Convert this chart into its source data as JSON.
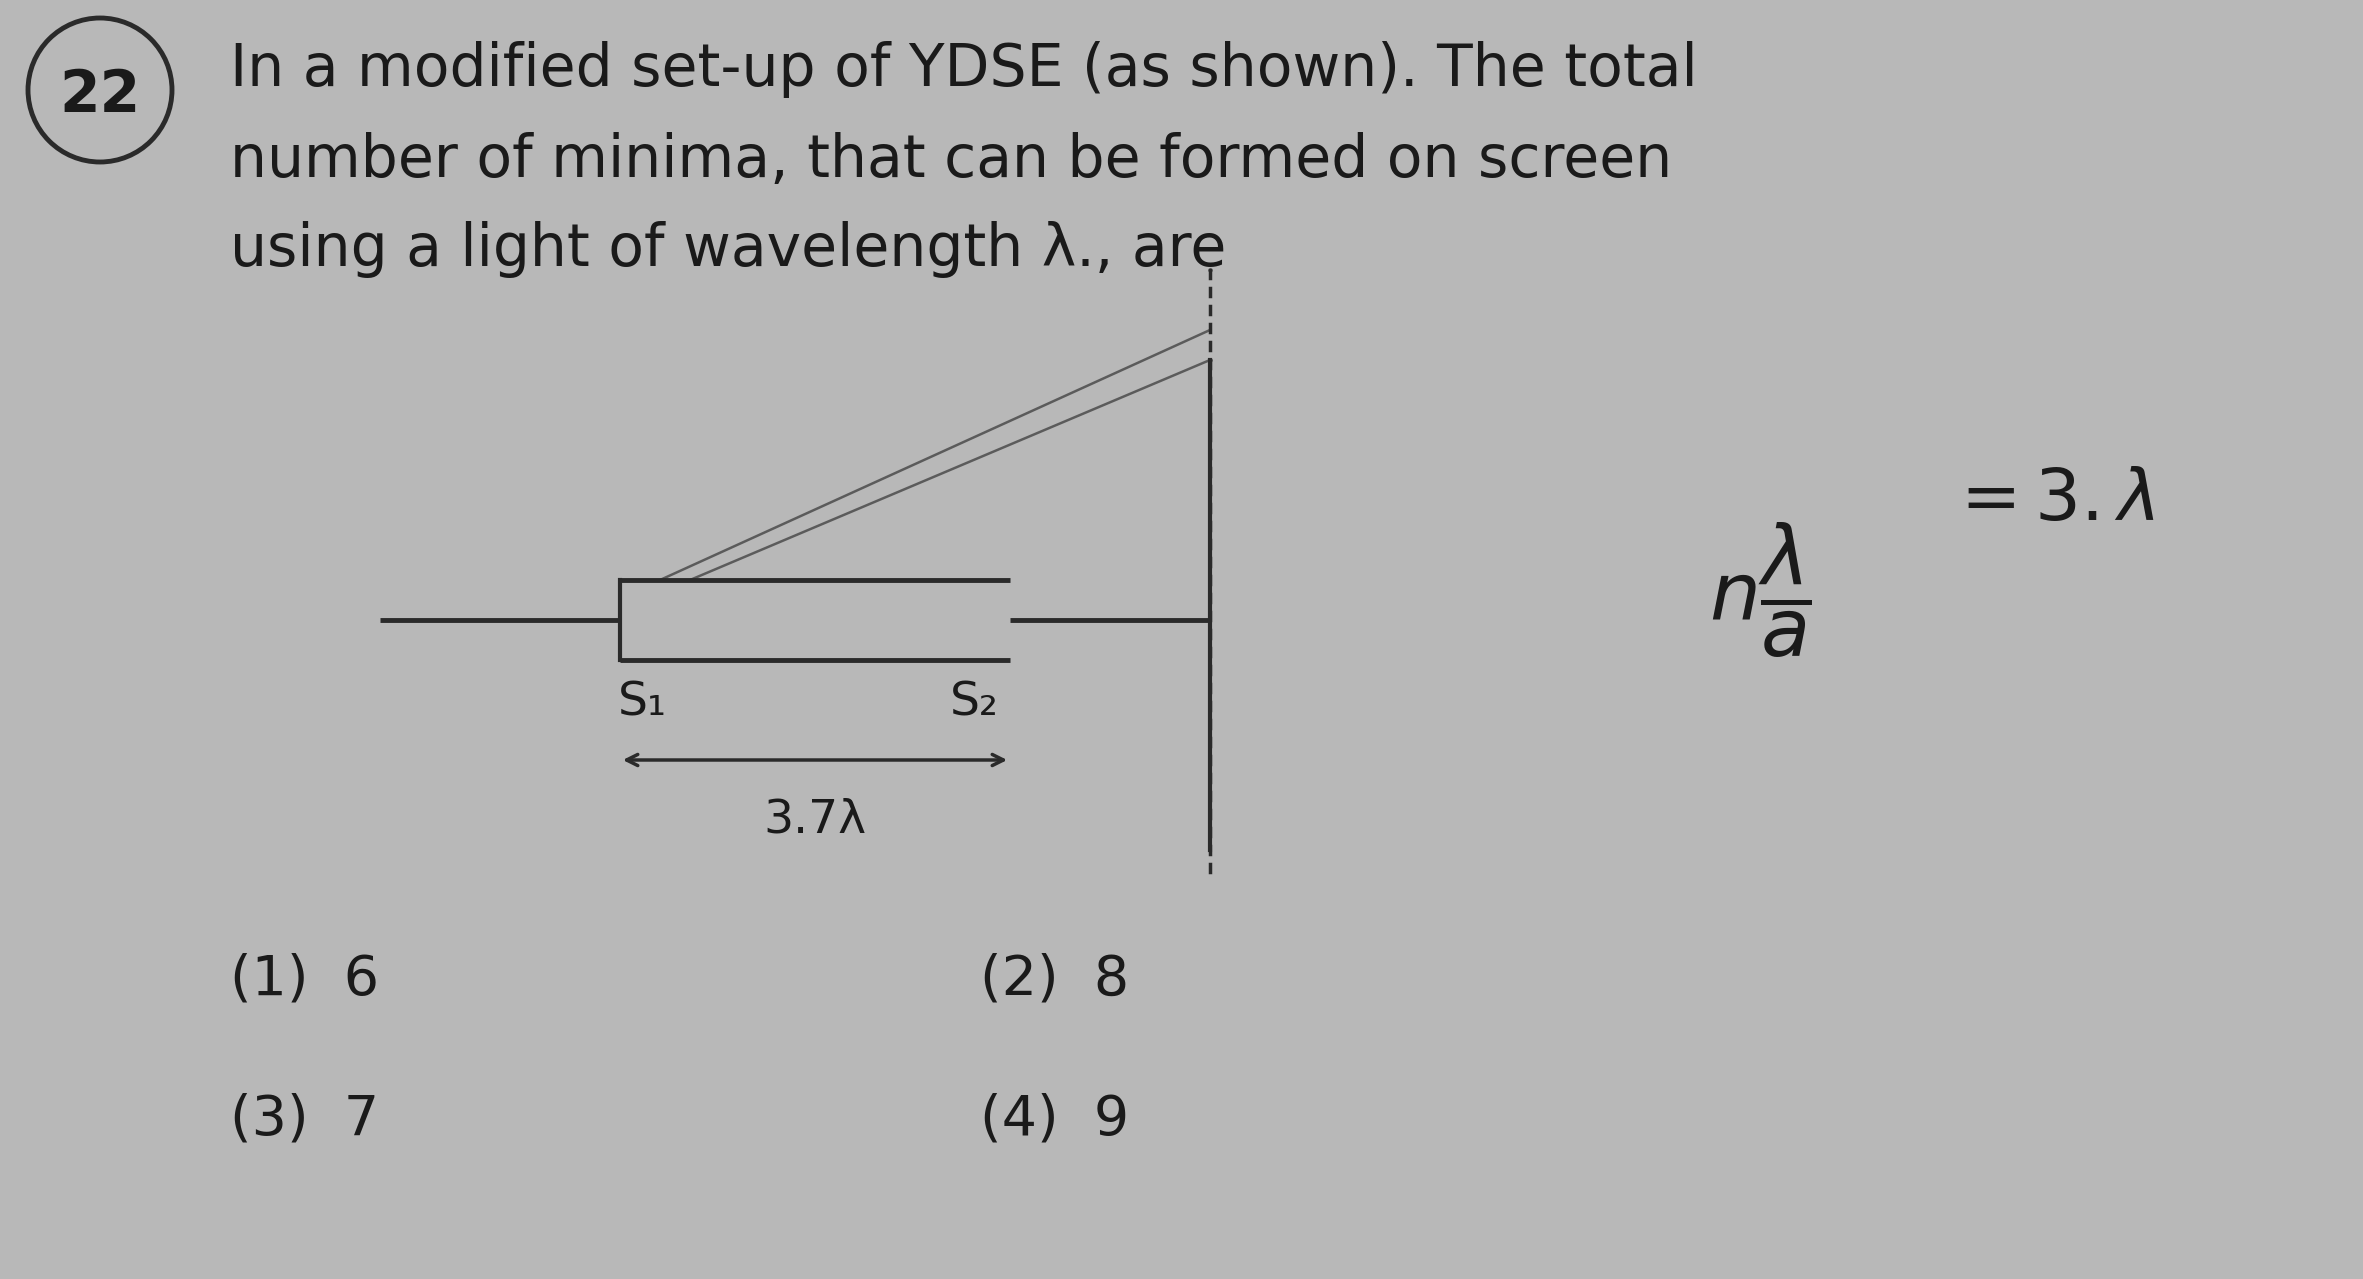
{
  "background_color": "#b8b8b8",
  "question_number": "22",
  "question_text_line1": "In a modified set-up of YDSE (as shown). The total",
  "question_text_line2": "number of minima, that can be formed on screen",
  "question_text_line3": "using a light of wavelength λ., are",
  "options": [
    "(1)  6",
    "(2)  8",
    "(3)  7",
    "(4)  9"
  ],
  "s1_label": "S₁",
  "s2_label": "S₂",
  "distance_label": "3.7λ",
  "text_color": "#1a1a1a",
  "diagram_color": "#2a2a2a",
  "font_size_question": 42,
  "font_size_options": 40,
  "font_size_labels": 34
}
